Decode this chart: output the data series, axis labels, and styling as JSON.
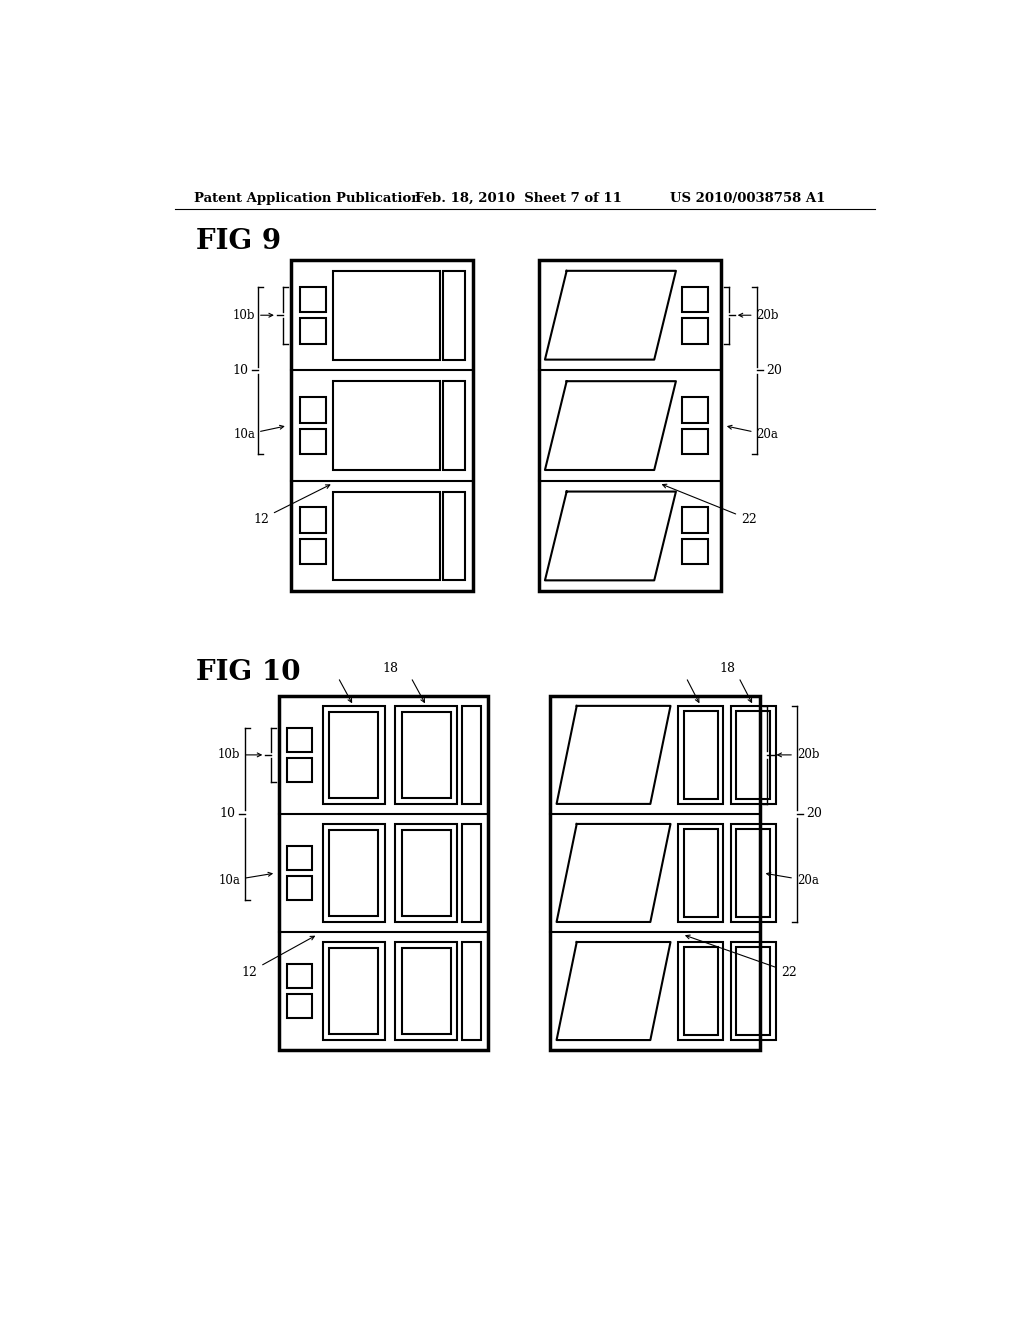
{
  "bg_color": "#ffffff",
  "header_text1": "Patent Application Publication",
  "header_text2": "Feb. 18, 2010  Sheet 7 of 11",
  "header_text3": "US 2010/0038758 A1",
  "fig9_label": "FIG 9",
  "fig10_label": "FIG 10"
}
